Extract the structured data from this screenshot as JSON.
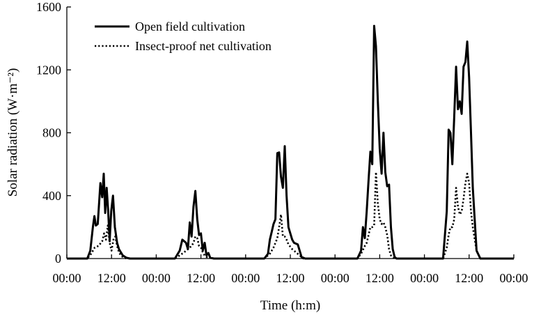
{
  "chart_data": {
    "type": "line",
    "title": "",
    "xlabel": "Time (h:m)",
    "ylabel": "Solar radiation (W·m⁻²)",
    "x_unit": "hours from start",
    "xlim": [
      0,
      120
    ],
    "ylim": [
      0,
      1600
    ],
    "x_tick_values": [
      0,
      12,
      24,
      36,
      48,
      60,
      72,
      84,
      96,
      108,
      120
    ],
    "x_tick_labels": [
      "00:00",
      "12:00",
      "00:00",
      "12:00",
      "00:00",
      "12:00",
      "00:00",
      "12:00",
      "00:00",
      "12:00",
      "00:00"
    ],
    "y_tick_values": [
      0,
      400,
      800,
      1200,
      1600
    ],
    "y_tick_labels": [
      "0",
      "400",
      "800",
      "1200",
      "1600"
    ],
    "legend_position": "top-left",
    "grid": false,
    "series": [
      {
        "name": "Open field cultivation",
        "style": "solid",
        "x": [
          0,
          5.5,
          6.3,
          7.0,
          7.4,
          7.8,
          8.3,
          9.0,
          9.5,
          9.9,
          10.3,
          10.7,
          11.1,
          11.5,
          11.9,
          12.4,
          12.9,
          13.5,
          14.0,
          14.5,
          15.0,
          16.0,
          17.0,
          18.0,
          18.5,
          29.0,
          30.3,
          31.0,
          32.0,
          32.5,
          33.0,
          33.5,
          34.0,
          34.5,
          35.0,
          35.5,
          36.0,
          36.5,
          37.0,
          37.5,
          38.0,
          38.5,
          39.5,
          53.0,
          54.0,
          54.5,
          55.0,
          55.5,
          56.0,
          56.5,
          57.0,
          57.5,
          58.0,
          58.5,
          59.0,
          59.5,
          60.5,
          61.0,
          62.0,
          63.0,
          64.0,
          78.0,
          79.0,
          79.5,
          80.0,
          80.5,
          81.0,
          81.5,
          82.0,
          82.5,
          83.0,
          83.5,
          84.0,
          84.5,
          85.0,
          85.5,
          86.0,
          86.5,
          87.0,
          87.5,
          88.0,
          88.5,
          89.5,
          101.0,
          102.0,
          102.5,
          103.0,
          103.5,
          104.0,
          104.5,
          105.0,
          105.5,
          106.0,
          106.5,
          107.0,
          107.5,
          108.0,
          108.5,
          109.0,
          110.0,
          111.0,
          112.0,
          120.0
        ],
        "y": [
          0,
          0,
          50,
          200,
          270,
          210,
          220,
          480,
          390,
          540,
          290,
          450,
          300,
          110,
          300,
          400,
          200,
          100,
          60,
          40,
          20,
          5,
          0,
          0,
          0,
          0,
          50,
          120,
          100,
          60,
          230,
          140,
          330,
          430,
          250,
          150,
          160,
          50,
          100,
          20,
          35,
          5,
          0,
          0,
          30,
          120,
          170,
          220,
          250,
          670,
          675,
          520,
          450,
          715,
          400,
          200,
          120,
          100,
          90,
          10,
          0,
          0,
          50,
          200,
          130,
          300,
          500,
          680,
          600,
          1480,
          1350,
          1000,
          700,
          540,
          800,
          550,
          460,
          470,
          200,
          60,
          10,
          0,
          0,
          0,
          300,
          820,
          800,
          600,
          900,
          1220,
          950,
          1000,
          920,
          1220,
          1250,
          1380,
          1150,
          800,
          450,
          50,
          0,
          0,
          0
        ]
      },
      {
        "name": "Insect-proof net cultivation",
        "style": "dotted",
        "x": [
          0,
          5.5,
          6.5,
          7.5,
          8.5,
          9.5,
          10.0,
          10.5,
          11.0,
          11.5,
          12.0,
          12.5,
          13.0,
          13.5,
          14.0,
          14.5,
          15.0,
          16.0,
          17.0,
          18.0,
          18.5,
          29.0,
          30.3,
          31.5,
          32.5,
          33.5,
          34.0,
          34.5,
          35.0,
          35.5,
          36.0,
          36.5,
          37.0,
          37.5,
          38.5,
          39.5,
          53.0,
          54.5,
          55.5,
          56.5,
          57.0,
          57.5,
          58.0,
          58.5,
          59.0,
          59.5,
          60.5,
          62.0,
          63.5,
          78.0,
          79.0,
          80.0,
          80.5,
          81.0,
          81.5,
          82.0,
          82.5,
          83.0,
          83.5,
          84.0,
          84.5,
          85.0,
          85.5,
          86.0,
          86.5,
          87.0,
          88.0,
          89.5,
          101.0,
          102.0,
          102.5,
          103.0,
          103.5,
          104.0,
          104.5,
          105.0,
          105.5,
          106.0,
          106.5,
          107.0,
          107.5,
          108.0,
          108.5,
          109.0,
          110.0,
          111.0,
          112.0,
          120.0
        ],
        "y": [
          0,
          0,
          30,
          70,
          80,
          110,
          160,
          120,
          210,
          100,
          50,
          120,
          140,
          80,
          40,
          20,
          10,
          0,
          0,
          0,
          0,
          0,
          20,
          40,
          60,
          80,
          100,
          140,
          130,
          80,
          70,
          40,
          20,
          10,
          5,
          0,
          0,
          30,
          70,
          130,
          200,
          280,
          140,
          140,
          120,
          90,
          60,
          30,
          0,
          0,
          30,
          80,
          100,
          150,
          200,
          200,
          210,
          550,
          350,
          250,
          220,
          230,
          200,
          150,
          60,
          20,
          0,
          0,
          0,
          70,
          150,
          200,
          200,
          250,
          450,
          330,
          280,
          300,
          380,
          480,
          540,
          480,
          300,
          200,
          50,
          0,
          0,
          0
        ]
      }
    ]
  }
}
